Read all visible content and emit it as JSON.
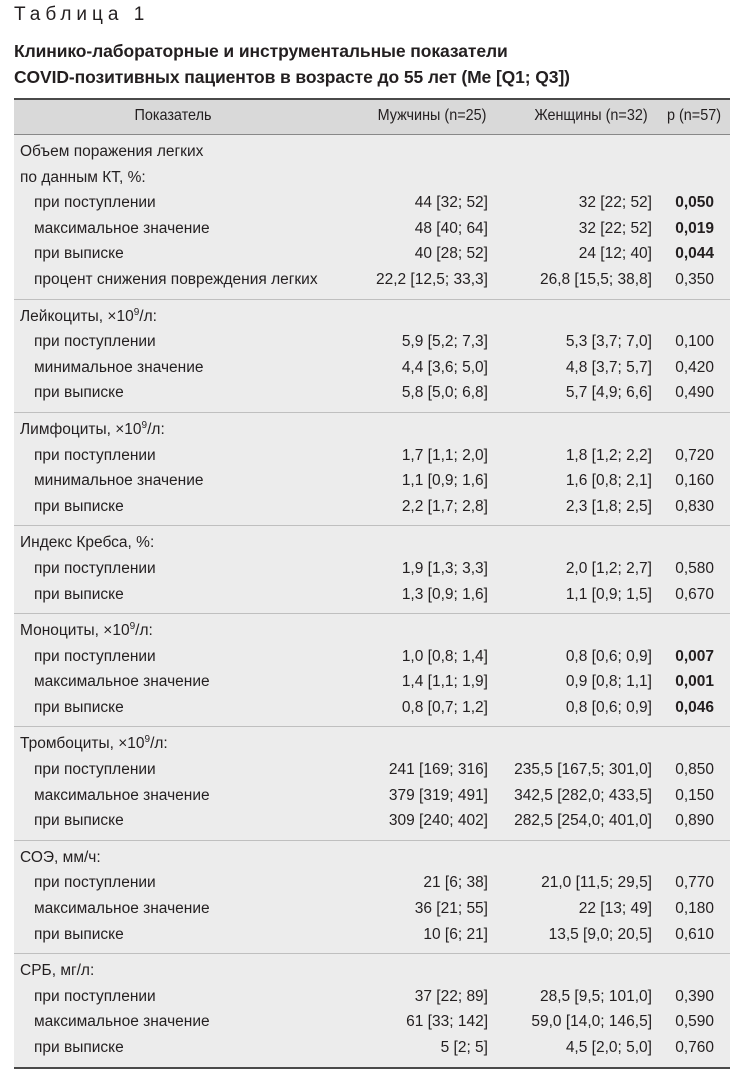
{
  "table_label": "Таблица 1",
  "title_line1": "Клинико-лабораторные и инструментальные показатели",
  "title_line2": "COVID-позитивных пациентов в возрасте до 55 лет (Ме [Q1; Q3])",
  "header": {
    "indicator": "Показатель",
    "men": "Мужчины (n=25)",
    "women": "Женщины (n=32)",
    "p": "p (n=57)"
  },
  "groups": [
    {
      "title_lines": [
        "Объем поражения легких",
        "по данным КТ, %:"
      ],
      "rows": [
        {
          "label": "при поступлении",
          "men": "44 [32; 52]",
          "women": "32 [22; 52]",
          "p": "0,050",
          "bold": true
        },
        {
          "label": "максимальное значение",
          "men": "48 [40; 64]",
          "women": "32 [22; 52]",
          "p": "0,019",
          "bold": true
        },
        {
          "label": "при выписке",
          "men": "40 [28; 52]",
          "women": "24 [12; 40]",
          "p": "0,044",
          "bold": true
        },
        {
          "label": "процент снижения повреждения легких",
          "men": "22,2 [12,5; 33,3]",
          "women": "26,8 [15,5; 38,8]",
          "p": "0,350",
          "bold": false
        }
      ]
    },
    {
      "title_pre": "Лейкоциты, ×10",
      "title_sup": "9",
      "title_post": "/л:",
      "rows": [
        {
          "label": "при поступлении",
          "men": "5,9 [5,2; 7,3]",
          "women": "5,3 [3,7; 7,0]",
          "p": "0,100",
          "bold": false
        },
        {
          "label": "минимальное значение",
          "men": "4,4 [3,6; 5,0]",
          "women": "4,8 [3,7; 5,7]",
          "p": "0,420",
          "bold": false
        },
        {
          "label": "при выписке",
          "men": "5,8 [5,0; 6,8]",
          "women": "5,7 [4,9; 6,6]",
          "p": "0,490",
          "bold": false
        }
      ]
    },
    {
      "title_pre": "Лимфоциты, ×10",
      "title_sup": "9",
      "title_post": "/л:",
      "rows": [
        {
          "label": "при поступлении",
          "men": "1,7 [1,1; 2,0]",
          "women": "1,8 [1,2; 2,2]",
          "p": "0,720",
          "bold": false
        },
        {
          "label": "минимальное значение",
          "men": "1,1 [0,9; 1,6]",
          "women": "1,6 [0,8; 2,1]",
          "p": "0,160",
          "bold": false
        },
        {
          "label": "при выписке",
          "men": "2,2 [1,7; 2,8]",
          "women": "2,3 [1,8; 2,5]",
          "p": "0,830",
          "bold": false
        }
      ]
    },
    {
      "title_pre": "Индекс Кребса, %:",
      "rows": [
        {
          "label": "при поступлении",
          "men": "1,9 [1,3; 3,3]",
          "women": "2,0 [1,2; 2,7]",
          "p": "0,580",
          "bold": false
        },
        {
          "label": "при выписке",
          "men": "1,3 [0,9; 1,6]",
          "women": "1,1 [0,9; 1,5]",
          "p": "0,670",
          "bold": false
        }
      ]
    },
    {
      "title_pre": "Моноциты, ×10",
      "title_sup": "9",
      "title_post": "/л:",
      "rows": [
        {
          "label": "при поступлении",
          "men": "1,0 [0,8; 1,4]",
          "women": "0,8 [0,6; 0,9]",
          "p": "0,007",
          "bold": true
        },
        {
          "label": "максимальное значение",
          "men": "1,4 [1,1; 1,9]",
          "women": "0,9 [0,8; 1,1]",
          "p": "0,001",
          "bold": true
        },
        {
          "label": "при выписке",
          "men": "0,8 [0,7; 1,2]",
          "women": "0,8 [0,6; 0,9]",
          "p": "0,046",
          "bold": true
        }
      ]
    },
    {
      "title_pre": "Тромбоциты, ×10",
      "title_sup": "9",
      "title_post": "/л:",
      "rows": [
        {
          "label": "при поступлении",
          "men": "241 [169; 316]",
          "women": "235,5 [167,5; 301,0]",
          "p": "0,850",
          "bold": false
        },
        {
          "label": "максимальное значение",
          "men": "379 [319; 491]",
          "women": "342,5 [282,0; 433,5]",
          "p": "0,150",
          "bold": false
        },
        {
          "label": "при выписке",
          "men": "309 [240; 402]",
          "women": "282,5 [254,0; 401,0]",
          "p": "0,890",
          "bold": false
        }
      ]
    },
    {
      "title_pre": "СОЭ, мм/ч:",
      "rows": [
        {
          "label": "при поступлении",
          "men": "21 [6; 38]",
          "women": "21,0 [11,5; 29,5]",
          "p": "0,770",
          "bold": false
        },
        {
          "label": "максимальное значение",
          "men": "36 [21; 55]",
          "women": "22 [13; 49]",
          "p": "0,180",
          "bold": false
        },
        {
          "label": "при выписке",
          "men": "10 [6; 21]",
          "women": "13,5 [9,0; 20,5]",
          "p": "0,610",
          "bold": false
        }
      ]
    },
    {
      "title_pre": "СРБ, мг/л:",
      "rows": [
        {
          "label": "при поступлении",
          "men": "37 [22; 89]",
          "women": "28,5 [9,5; 101,0]",
          "p": "0,390",
          "bold": false
        },
        {
          "label": "максимальное значение",
          "men": "61 [33; 142]",
          "women": "59,0 [14,0; 146,5]",
          "p": "0,590",
          "bold": false
        },
        {
          "label": "при выписке",
          "men": "5 [2; 5]",
          "women": "4,5 [2,0; 5,0]",
          "p": "0,760",
          "bold": false
        }
      ]
    }
  ]
}
